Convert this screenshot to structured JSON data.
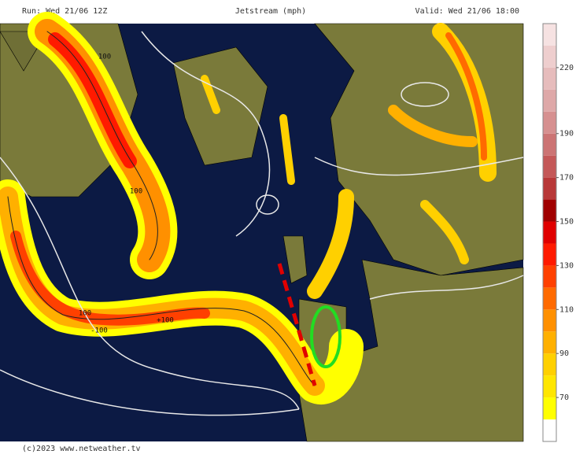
{
  "header": {
    "run": "Run: Wed 21/06 12Z",
    "title": "Jetstream (mph)",
    "valid": "Valid: Wed 21/06 18:00"
  },
  "footer": "(c)2023 www.netweather.tv",
  "map": {
    "contour_labels": [
      "100",
      "100",
      "100",
      "-100",
      "+100"
    ]
  },
  "legend": {
    "range": [
      50,
      240
    ],
    "levels": [
      50,
      60,
      70,
      80,
      90,
      100,
      110,
      120,
      130,
      140,
      150,
      160,
      170,
      180,
      190,
      200,
      210,
      220,
      230,
      240
    ],
    "colors": [
      "#ffffff",
      "#ffff00",
      "#ffe600",
      "#ffd000",
      "#ffb000",
      "#ff9000",
      "#ff6a00",
      "#ff4000",
      "#ff1a00",
      "#e00000",
      "#a00000",
      "#b83838",
      "#c45858",
      "#cc7474",
      "#d69090",
      "#dea8a8",
      "#e6bcbc",
      "#eecece",
      "#f6e2e2"
    ],
    "ticks": [
      70,
      90,
      110,
      130,
      150,
      170,
      190,
      220
    ]
  }
}
